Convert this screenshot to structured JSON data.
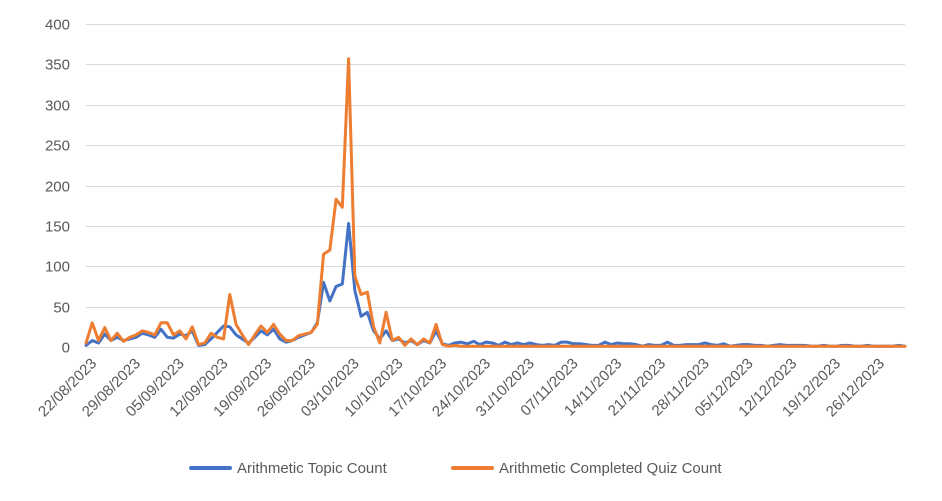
{
  "chart_data": {
    "type": "line",
    "title": "",
    "xlabel": "",
    "ylabel": "",
    "ylim": [
      0,
      400
    ],
    "yticks": [
      0,
      50,
      100,
      150,
      200,
      250,
      300,
      350,
      400
    ],
    "grid": true,
    "legend_position": "bottom",
    "x_start": "22/08/2023",
    "x_end": "31/12/2023",
    "xtick_labels": [
      "22/08/2023",
      "29/08/2023",
      "05/09/2023",
      "12/09/2023",
      "19/09/2023",
      "26/09/2023",
      "03/10/2023",
      "10/10/2023",
      "17/10/2023",
      "24/10/2023",
      "31/10/2023",
      "07/11/2023",
      "14/11/2023",
      "21/11/2023",
      "28/11/2023",
      "05/12/2023",
      "12/12/2023",
      "19/12/2023",
      "26/12/2023"
    ],
    "series": [
      {
        "name": "Arithmetic Topic Count",
        "color": "#4472C4",
        "points": [
          [
            "22/08/2023",
            2
          ],
          [
            "23/08/2023",
            8
          ],
          [
            "24/08/2023",
            5
          ],
          [
            "25/08/2023",
            16
          ],
          [
            "26/08/2023",
            8
          ],
          [
            "27/08/2023",
            12
          ],
          [
            "28/08/2023",
            8
          ],
          [
            "29/08/2023",
            10
          ],
          [
            "30/08/2023",
            12
          ],
          [
            "31/08/2023",
            17
          ],
          [
            "01/09/2023",
            15
          ],
          [
            "02/09/2023",
            12
          ],
          [
            "03/09/2023",
            22
          ],
          [
            "04/09/2023",
            12
          ],
          [
            "05/09/2023",
            11
          ],
          [
            "06/09/2023",
            16
          ],
          [
            "07/09/2023",
            14
          ],
          [
            "08/09/2023",
            20
          ],
          [
            "09/09/2023",
            2
          ],
          [
            "10/09/2023",
            3
          ],
          [
            "11/09/2023",
            10
          ],
          [
            "12/09/2023",
            18
          ],
          [
            "13/09/2023",
            26
          ],
          [
            "14/09/2023",
            25
          ],
          [
            "15/09/2023",
            15
          ],
          [
            "16/09/2023",
            10
          ],
          [
            "17/09/2023",
            5
          ],
          [
            "18/09/2023",
            12
          ],
          [
            "19/09/2023",
            20
          ],
          [
            "20/09/2023",
            15
          ],
          [
            "21/09/2023",
            22
          ],
          [
            "22/09/2023",
            10
          ],
          [
            "23/09/2023",
            6
          ],
          [
            "24/09/2023",
            8
          ],
          [
            "25/09/2023",
            12
          ],
          [
            "26/09/2023",
            15
          ],
          [
            "27/09/2023",
            18
          ],
          [
            "28/09/2023",
            30
          ],
          [
            "29/09/2023",
            80
          ],
          [
            "30/09/2023",
            57
          ],
          [
            "01/10/2023",
            75
          ],
          [
            "02/10/2023",
            78
          ],
          [
            "03/10/2023",
            153
          ],
          [
            "04/10/2023",
            70
          ],
          [
            "05/10/2023",
            38
          ],
          [
            "06/10/2023",
            43
          ],
          [
            "07/10/2023",
            20
          ],
          [
            "08/10/2023",
            10
          ],
          [
            "09/10/2023",
            20
          ],
          [
            "10/10/2023",
            8
          ],
          [
            "11/10/2023",
            10
          ],
          [
            "12/10/2023",
            5
          ],
          [
            "13/10/2023",
            8
          ],
          [
            "14/10/2023",
            3
          ],
          [
            "15/10/2023",
            8
          ],
          [
            "16/10/2023",
            5
          ],
          [
            "17/10/2023",
            20
          ],
          [
            "18/10/2023",
            4
          ],
          [
            "19/10/2023",
            2
          ],
          [
            "20/10/2023",
            5
          ],
          [
            "21/10/2023",
            6
          ],
          [
            "22/10/2023",
            4
          ],
          [
            "23/10/2023",
            7
          ],
          [
            "24/10/2023",
            3
          ],
          [
            "25/10/2023",
            6
          ],
          [
            "26/10/2023",
            5
          ],
          [
            "27/10/2023",
            2
          ],
          [
            "28/10/2023",
            6
          ],
          [
            "29/10/2023",
            3
          ],
          [
            "30/10/2023",
            5
          ],
          [
            "31/10/2023",
            3
          ],
          [
            "01/11/2023",
            5
          ],
          [
            "02/11/2023",
            3
          ],
          [
            "03/11/2023",
            2
          ],
          [
            "04/11/2023",
            3
          ],
          [
            "05/11/2023",
            2
          ],
          [
            "06/11/2023",
            6
          ],
          [
            "07/11/2023",
            6
          ],
          [
            "08/11/2023",
            4
          ],
          [
            "09/11/2023",
            4
          ],
          [
            "10/11/2023",
            3
          ],
          [
            "11/11/2023",
            2
          ],
          [
            "12/11/2023",
            2
          ],
          [
            "13/11/2023",
            6
          ],
          [
            "14/11/2023",
            3
          ],
          [
            "15/11/2023",
            5
          ],
          [
            "16/11/2023",
            4
          ],
          [
            "17/11/2023",
            4
          ],
          [
            "18/11/2023",
            3
          ],
          [
            "19/11/2023",
            1
          ],
          [
            "20/11/2023",
            3
          ],
          [
            "21/11/2023",
            2
          ],
          [
            "22/11/2023",
            2
          ],
          [
            "23/11/2023",
            6
          ],
          [
            "24/11/2023",
            2
          ],
          [
            "25/11/2023",
            2
          ],
          [
            "26/11/2023",
            3
          ],
          [
            "27/11/2023",
            3
          ],
          [
            "28/11/2023",
            3
          ],
          [
            "29/11/2023",
            5
          ],
          [
            "30/11/2023",
            3
          ],
          [
            "01/12/2023",
            2
          ],
          [
            "02/12/2023",
            4
          ],
          [
            "03/12/2023",
            1
          ],
          [
            "04/12/2023",
            2
          ],
          [
            "05/12/2023",
            3
          ],
          [
            "06/12/2023",
            3
          ],
          [
            "07/12/2023",
            2
          ],
          [
            "08/12/2023",
            2
          ],
          [
            "09/12/2023",
            1
          ],
          [
            "10/12/2023",
            2
          ],
          [
            "11/12/2023",
            3
          ],
          [
            "12/12/2023",
            2
          ],
          [
            "13/12/2023",
            2
          ],
          [
            "14/12/2023",
            2
          ],
          [
            "15/12/2023",
            2
          ],
          [
            "16/12/2023",
            1
          ],
          [
            "17/12/2023",
            1
          ],
          [
            "18/12/2023",
            2
          ],
          [
            "19/12/2023",
            1
          ],
          [
            "20/12/2023",
            1
          ],
          [
            "21/12/2023",
            2
          ],
          [
            "22/12/2023",
            2
          ],
          [
            "23/12/2023",
            1
          ],
          [
            "24/12/2023",
            1
          ],
          [
            "25/12/2023",
            2
          ],
          [
            "26/12/2023",
            1
          ],
          [
            "27/12/2023",
            1
          ],
          [
            "28/12/2023",
            1
          ],
          [
            "29/12/2023",
            1
          ],
          [
            "30/12/2023",
            2
          ],
          [
            "31/12/2023",
            1
          ]
        ]
      },
      {
        "name": "Arithmetic Completed Quiz Count",
        "color": "#ED7D31",
        "points": [
          [
            "22/08/2023",
            5
          ],
          [
            "23/08/2023",
            30
          ],
          [
            "24/08/2023",
            8
          ],
          [
            "25/08/2023",
            24
          ],
          [
            "26/08/2023",
            8
          ],
          [
            "27/08/2023",
            17
          ],
          [
            "28/08/2023",
            7
          ],
          [
            "29/08/2023",
            12
          ],
          [
            "30/08/2023",
            15
          ],
          [
            "31/08/2023",
            20
          ],
          [
            "01/09/2023",
            18
          ],
          [
            "02/09/2023",
            15
          ],
          [
            "03/09/2023",
            30
          ],
          [
            "04/09/2023",
            30
          ],
          [
            "05/09/2023",
            15
          ],
          [
            "06/09/2023",
            20
          ],
          [
            "07/09/2023",
            10
          ],
          [
            "08/09/2023",
            25
          ],
          [
            "09/09/2023",
            3
          ],
          [
            "10/09/2023",
            5
          ],
          [
            "11/09/2023",
            17
          ],
          [
            "12/09/2023",
            12
          ],
          [
            "13/09/2023",
            10
          ],
          [
            "14/09/2023",
            65
          ],
          [
            "15/09/2023",
            28
          ],
          [
            "16/09/2023",
            15
          ],
          [
            "17/09/2023",
            3
          ],
          [
            "18/09/2023",
            15
          ],
          [
            "19/09/2023",
            26
          ],
          [
            "20/09/2023",
            18
          ],
          [
            "21/09/2023",
            28
          ],
          [
            "22/09/2023",
            16
          ],
          [
            "23/09/2023",
            8
          ],
          [
            "24/09/2023",
            8
          ],
          [
            "25/09/2023",
            14
          ],
          [
            "26/09/2023",
            16
          ],
          [
            "27/09/2023",
            18
          ],
          [
            "28/09/2023",
            28
          ],
          [
            "29/09/2023",
            115
          ],
          [
            "30/09/2023",
            120
          ],
          [
            "01/10/2023",
            183
          ],
          [
            "02/10/2023",
            173
          ],
          [
            "03/10/2023",
            357
          ],
          [
            "04/10/2023",
            88
          ],
          [
            "05/10/2023",
            65
          ],
          [
            "06/10/2023",
            68
          ],
          [
            "07/10/2023",
            25
          ],
          [
            "08/10/2023",
            5
          ],
          [
            "09/10/2023",
            43
          ],
          [
            "10/10/2023",
            8
          ],
          [
            "11/10/2023",
            12
          ],
          [
            "12/10/2023",
            2
          ],
          [
            "13/10/2023",
            10
          ],
          [
            "14/10/2023",
            3
          ],
          [
            "15/10/2023",
            10
          ],
          [
            "16/10/2023",
            5
          ],
          [
            "17/10/2023",
            28
          ],
          [
            "18/10/2023",
            3
          ],
          [
            "19/10/2023",
            1
          ],
          [
            "20/10/2023",
            2
          ],
          [
            "21/10/2023",
            1
          ],
          [
            "22/10/2023",
            1
          ],
          [
            "23/10/2023",
            1
          ],
          [
            "24/10/2023",
            1
          ],
          [
            "25/10/2023",
            1
          ],
          [
            "26/10/2023",
            1
          ],
          [
            "27/10/2023",
            1
          ],
          [
            "28/10/2023",
            1
          ],
          [
            "29/10/2023",
            1
          ],
          [
            "30/10/2023",
            1
          ],
          [
            "31/10/2023",
            1
          ],
          [
            "01/11/2023",
            1
          ],
          [
            "02/11/2023",
            1
          ],
          [
            "03/11/2023",
            1
          ],
          [
            "04/11/2023",
            1
          ],
          [
            "05/11/2023",
            1
          ],
          [
            "06/11/2023",
            1
          ],
          [
            "07/11/2023",
            1
          ],
          [
            "08/11/2023",
            1
          ],
          [
            "09/11/2023",
            1
          ],
          [
            "10/11/2023",
            1
          ],
          [
            "11/11/2023",
            1
          ],
          [
            "12/11/2023",
            1
          ],
          [
            "13/11/2023",
            1
          ],
          [
            "14/11/2023",
            1
          ],
          [
            "15/11/2023",
            1
          ],
          [
            "16/11/2023",
            1
          ],
          [
            "17/11/2023",
            1
          ],
          [
            "18/11/2023",
            1
          ],
          [
            "19/11/2023",
            1
          ],
          [
            "20/11/2023",
            1
          ],
          [
            "21/11/2023",
            1
          ],
          [
            "22/11/2023",
            1
          ],
          [
            "23/11/2023",
            1
          ],
          [
            "24/11/2023",
            1
          ],
          [
            "25/11/2023",
            1
          ],
          [
            "26/11/2023",
            1
          ],
          [
            "27/11/2023",
            1
          ],
          [
            "28/11/2023",
            1
          ],
          [
            "29/11/2023",
            1
          ],
          [
            "30/11/2023",
            1
          ],
          [
            "01/12/2023",
            1
          ],
          [
            "02/12/2023",
            1
          ],
          [
            "03/12/2023",
            1
          ],
          [
            "04/12/2023",
            1
          ],
          [
            "05/12/2023",
            1
          ],
          [
            "06/12/2023",
            1
          ],
          [
            "07/12/2023",
            1
          ],
          [
            "08/12/2023",
            1
          ],
          [
            "09/12/2023",
            1
          ],
          [
            "10/12/2023",
            1
          ],
          [
            "11/12/2023",
            1
          ],
          [
            "12/12/2023",
            1
          ],
          [
            "13/12/2023",
            1
          ],
          [
            "14/12/2023",
            1
          ],
          [
            "15/12/2023",
            1
          ],
          [
            "16/12/2023",
            1
          ],
          [
            "17/12/2023",
            1
          ],
          [
            "18/12/2023",
            1
          ],
          [
            "19/12/2023",
            1
          ],
          [
            "20/12/2023",
            1
          ],
          [
            "21/12/2023",
            1
          ],
          [
            "22/12/2023",
            1
          ],
          [
            "23/12/2023",
            1
          ],
          [
            "24/12/2023",
            1
          ],
          [
            "25/12/2023",
            1
          ],
          [
            "26/12/2023",
            1
          ],
          [
            "27/12/2023",
            1
          ],
          [
            "28/12/2023",
            1
          ],
          [
            "29/12/2023",
            1
          ],
          [
            "30/12/2023",
            1
          ],
          [
            "31/12/2023",
            1
          ]
        ]
      }
    ]
  }
}
